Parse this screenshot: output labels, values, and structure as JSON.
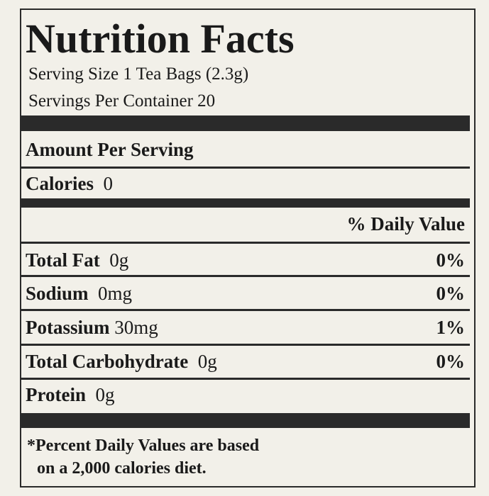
{
  "title": "Nutrition Facts",
  "serving_size": "Serving Size 1 Tea Bags (2.3g)",
  "servings_per_container": "Servings Per Container 20",
  "amount_per_serving": "Amount Per Serving",
  "calories": {
    "label": "Calories",
    "value": "0"
  },
  "daily_value_header": "% Daily Value",
  "nutrients": [
    {
      "name": "Total Fat",
      "amount": "0g",
      "daily_value": "0%"
    },
    {
      "name": "Sodium",
      "amount": "0mg",
      "daily_value": "0%"
    },
    {
      "name": "Potassium",
      "amount": "30mg",
      "daily_value": "1%"
    },
    {
      "name": "Total Carbohydrate",
      "amount": "0g",
      "daily_value": "0%"
    },
    {
      "name": "Protein",
      "amount": "0g"
    }
  ],
  "footnote": [
    "*Percent Daily Values are based",
    "on a 2,000 calories diet."
  ]
}
